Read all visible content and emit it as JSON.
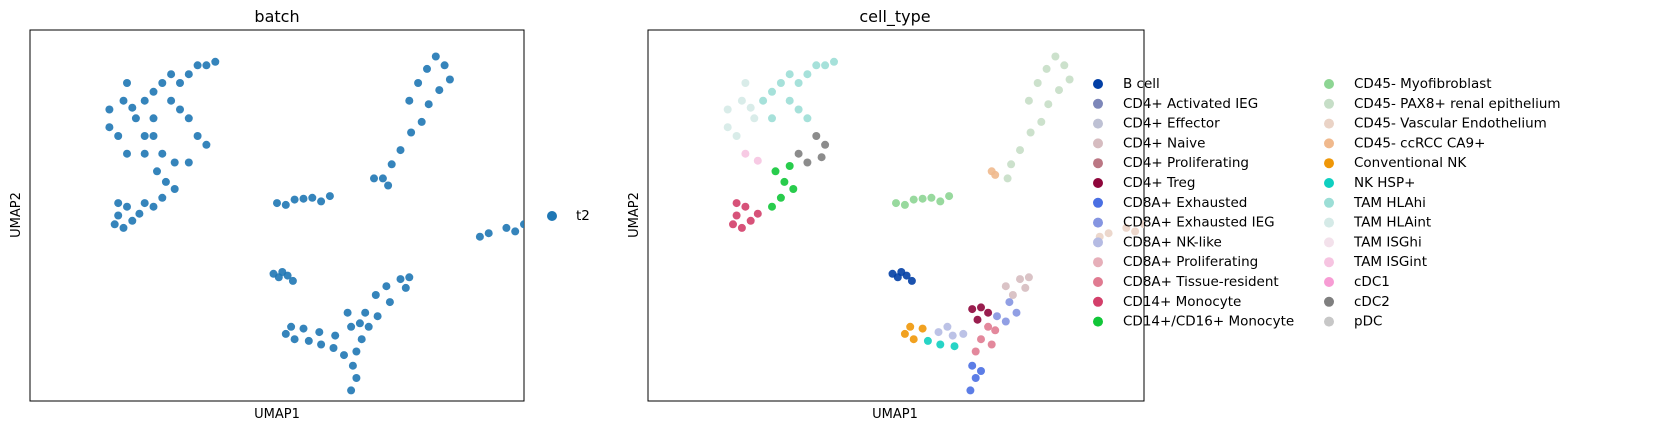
{
  "chart_data": [
    {
      "type": "scatter",
      "title": "batch",
      "xlabel": "UMAP1",
      "ylabel": "UMAP2",
      "xlim": [
        -4,
        24
      ],
      "ylim": [
        -4,
        17
      ],
      "grid": false,
      "ticks": false,
      "legend_position": "right",
      "legend": [
        {
          "name": "t2",
          "color": "#1f77b4"
        }
      ],
      "clusters": [
        {
          "group": "t2",
          "points": [
            [
              3,
              13.5
            ],
            [
              3.5,
              14
            ],
            [
              4,
              14.5
            ],
            [
              4.5,
              14
            ],
            [
              5,
              14.5
            ],
            [
              5.5,
              15
            ],
            [
              6,
              15
            ],
            [
              6.5,
              15.2
            ],
            [
              4,
              13
            ],
            [
              4.5,
              12.5
            ],
            [
              5,
              12
            ],
            [
              5.5,
              11
            ],
            [
              6,
              10.5
            ],
            [
              3,
              12
            ],
            [
              2.5,
              11
            ],
            [
              2.5,
              10
            ],
            [
              3,
              11
            ],
            [
              3.5,
              10
            ],
            [
              4.2,
              9.5
            ],
            [
              3.2,
              9
            ],
            [
              1.5,
              14
            ],
            [
              1.3,
              13
            ],
            [
              0.5,
              12.5
            ],
            [
              0.5,
              11.5
            ],
            [
              1,
              11
            ],
            [
              1.5,
              10
            ],
            [
              2,
              12
            ],
            [
              2.5,
              13
            ],
            [
              1.8,
              12.6
            ],
            [
              5,
              9.5
            ],
            [
              4.2,
              8
            ],
            [
              3.5,
              7.5
            ],
            [
              3,
              7
            ],
            [
              2.5,
              7.2
            ],
            [
              3.7,
              8.4
            ],
            [
              2.2,
              6.6
            ],
            [
              1.5,
              7
            ],
            [
              1,
              6.5
            ],
            [
              0.8,
              6
            ],
            [
              1.3,
              5.8
            ],
            [
              1.8,
              6.2
            ],
            [
              1,
              7.2
            ]
          ]
        },
        {
          "group": "t2",
          "points": [
            [
              17.5,
              13
            ],
            [
              18,
              14
            ],
            [
              18.5,
              14.8
            ],
            [
              19,
              15.5
            ],
            [
              19.5,
              15
            ],
            [
              19.8,
              14.2
            ],
            [
              19.2,
              13.6
            ],
            [
              18.6,
              12.8
            ],
            [
              18.2,
              11.8
            ],
            [
              17.6,
              11.2
            ],
            [
              17,
              10.2
            ],
            [
              16.5,
              9.4
            ],
            [
              16,
              8.6
            ],
            [
              16.3,
              8.2
            ],
            [
              15.5,
              8.6
            ]
          ]
        },
        {
          "group": "t2",
          "points": [
            [
              10,
              7.2
            ],
            [
              11,
              7.4
            ],
            [
              12,
              7.5
            ],
            [
              13,
              7.6
            ],
            [
              12.5,
              7.3
            ],
            [
              10.5,
              7.1
            ],
            [
              11.5,
              7.45
            ]
          ]
        },
        {
          "group": "t2",
          "points": [
            [
              22,
              5.5
            ],
            [
              23,
              5.8
            ],
            [
              24,
              6
            ],
            [
              25,
              6.1
            ],
            [
              26,
              6.3
            ],
            [
              27,
              6.4
            ],
            [
              25.5,
              6
            ],
            [
              23.5,
              5.6
            ],
            [
              21.5,
              5.3
            ]
          ]
        },
        {
          "group": "t2",
          "points": [
            [
              9.8,
              3.2
            ],
            [
              10.3,
              3.3
            ],
            [
              10.6,
              3.1
            ],
            [
              10.9,
              2.8
            ],
            [
              10.1,
              3.0
            ]
          ]
        },
        {
          "group": "t2",
          "points": [
            [
              15,
              1
            ],
            [
              15.6,
              2
            ],
            [
              16.2,
              2.5
            ],
            [
              17,
              2.9
            ],
            [
              17.5,
              3
            ],
            [
              17.3,
              2.4
            ],
            [
              16.4,
              1.6
            ],
            [
              15.7,
              0.8
            ],
            [
              15.2,
              0.2
            ],
            [
              14.8,
              -0.5
            ],
            [
              14.5,
              -1.2
            ],
            [
              14.3,
              -2
            ],
            [
              14.5,
              -2.7
            ],
            [
              14.2,
              -3.4
            ],
            [
              13.8,
              -1.4
            ],
            [
              13.2,
              -1
            ],
            [
              12.5,
              -0.8
            ],
            [
              11.8,
              -0.6
            ],
            [
              11,
              -0.5
            ],
            [
              10.5,
              -0.2
            ],
            [
              10.8,
              0.2
            ],
            [
              11.5,
              0.1
            ],
            [
              12.4,
              -0.1
            ],
            [
              13.3,
              -0.3
            ],
            [
              14.7,
              0.4
            ],
            [
              14,
              1
            ],
            [
              14.2,
              0.2
            ]
          ]
        }
      ]
    },
    {
      "type": "scatter",
      "title": "cell_type",
      "xlabel": "UMAP1",
      "ylabel": "UMAP2",
      "xlim": [
        -4,
        24
      ],
      "ylim": [
        -4,
        17
      ],
      "grid": false,
      "ticks": false,
      "legend_position": "right",
      "legend": [
        {
          "name": "B cell",
          "color": "#023fa5"
        },
        {
          "name": "CD4+ Activated IEG",
          "color": "#7d87b9"
        },
        {
          "name": "CD4+ Effector",
          "color": "#bec1d4"
        },
        {
          "name": "CD4+ Naive",
          "color": "#d6bcc0"
        },
        {
          "name": "CD4+ Proliferating",
          "color": "#bb7784"
        },
        {
          "name": "CD4+ Treg",
          "color": "#8e063b"
        },
        {
          "name": "CD8A+ Exhausted",
          "color": "#4a6fe3"
        },
        {
          "name": "CD8A+ Exhausted IEG",
          "color": "#8595e1"
        },
        {
          "name": "CD8A+ NK-like",
          "color": "#b5bbe3"
        },
        {
          "name": "CD8A+ Proliferating",
          "color": "#e6afb9"
        },
        {
          "name": "CD8A+ Tissue-resident",
          "color": "#e07b91"
        },
        {
          "name": "CD14+ Monocyte",
          "color": "#d33f6a"
        },
        {
          "name": "CD14+/CD16+ Monocyte",
          "color": "#11c638"
        },
        {
          "name": "CD45- Myofibroblast",
          "color": "#8dd593"
        },
        {
          "name": "CD45- PAX8+ renal epithelium",
          "color": "#c6dec7"
        },
        {
          "name": "CD45- Vascular Endothelium",
          "color": "#ead3c6"
        },
        {
          "name": "CD45- ccRCC CA9+",
          "color": "#f0b98d"
        },
        {
          "name": "Conventional NK",
          "color": "#ef9708"
        },
        {
          "name": "NK HSP+",
          "color": "#0fcfc0"
        },
        {
          "name": "TAM HLAhi",
          "color": "#9cded6"
        },
        {
          "name": "TAM HLAint",
          "color": "#d5eae7"
        },
        {
          "name": "TAM ISGhi",
          "color": "#f3e1eb"
        },
        {
          "name": "TAM ISGint",
          "color": "#f6c4e1"
        },
        {
          "name": "cDC1",
          "color": "#f79cd4"
        },
        {
          "name": "cDC2",
          "color": "#7f7f7f"
        },
        {
          "name": "pDC",
          "color": "#c7c7c7"
        }
      ],
      "clusters": [
        {
          "group": "TAM HLAhi",
          "points": [
            [
              3,
              13.5
            ],
            [
              3.5,
              14
            ],
            [
              4,
              14.5
            ],
            [
              4.5,
              14
            ],
            [
              5,
              14.5
            ],
            [
              5.5,
              15
            ],
            [
              6,
              15
            ],
            [
              6.5,
              15.2
            ],
            [
              4,
              13
            ],
            [
              4.5,
              12.5
            ],
            [
              5,
              12
            ],
            [
              3,
              12
            ],
            [
              2.5,
              13
            ]
          ]
        },
        {
          "group": "TAM HLAint",
          "points": [
            [
              1.5,
              14
            ],
            [
              1.3,
              13
            ],
            [
              0.5,
              12.5
            ],
            [
              0.5,
              11.5
            ],
            [
              1,
              11
            ],
            [
              1.8,
              12.6
            ],
            [
              2,
              12
            ]
          ]
        },
        {
          "group": "cDC2",
          "points": [
            [
              5.5,
              11
            ],
            [
              6,
              10.5
            ],
            [
              5,
              9.5
            ],
            [
              4.5,
              10
            ],
            [
              5.8,
              9.8
            ]
          ]
        },
        {
          "group": "TAM ISGint",
          "points": [
            [
              1.5,
              10
            ],
            [
              2.2,
              9.6
            ]
          ]
        },
        {
          "group": "CD14+/CD16+ Monocyte",
          "points": [
            [
              3.2,
              9
            ],
            [
              3.7,
              8.4
            ],
            [
              4.2,
              8
            ],
            [
              3.5,
              7.5
            ],
            [
              3,
              7
            ],
            [
              4,
              9.3
            ]
          ]
        },
        {
          "group": "CD14+ Monocyte",
          "points": [
            [
              2.2,
              6.6
            ],
            [
              1.5,
              7
            ],
            [
              1,
              6.5
            ],
            [
              0.8,
              6
            ],
            [
              1.3,
              5.8
            ],
            [
              1.8,
              6.2
            ],
            [
              1,
              7.2
            ]
          ]
        },
        {
          "group": "CD45- PAX8+ renal epithelium",
          "points": [
            [
              17.5,
              13
            ],
            [
              18,
              14
            ],
            [
              18.5,
              14.8
            ],
            [
              19,
              15.5
            ],
            [
              19.5,
              15
            ],
            [
              19.8,
              14.2
            ],
            [
              19.2,
              13.6
            ],
            [
              18.6,
              12.8
            ],
            [
              18.2,
              11.8
            ],
            [
              17.6,
              11.2
            ],
            [
              17,
              10.2
            ],
            [
              16.5,
              9.4
            ],
            [
              16.3,
              8.6
            ]
          ]
        },
        {
          "group": "CD45- ccRCC CA9+",
          "points": [
            [
              15.4,
              9.0
            ],
            [
              15.6,
              8.8
            ]
          ]
        },
        {
          "group": "CD45- Myofibroblast",
          "points": [
            [
              10,
              7.2
            ],
            [
              11,
              7.4
            ],
            [
              12,
              7.5
            ],
            [
              13,
              7.6
            ],
            [
              12.5,
              7.3
            ],
            [
              10.5,
              7.1
            ],
            [
              11.5,
              7.45
            ]
          ]
        },
        {
          "group": "CD45- Vascular Endothelium",
          "points": [
            [
              22,
              5.5
            ],
            [
              23,
              5.8
            ],
            [
              24,
              6
            ],
            [
              25,
              6.1
            ],
            [
              26,
              6.3
            ],
            [
              27,
              6.4
            ],
            [
              25.5,
              6
            ],
            [
              23.5,
              5.6
            ],
            [
              21.5,
              5.3
            ]
          ]
        },
        {
          "group": "B cell",
          "points": [
            [
              9.8,
              3.2
            ],
            [
              10.3,
              3.3
            ],
            [
              10.6,
              3.1
            ],
            [
              10.9,
              2.8
            ],
            [
              10.1,
              3.0
            ]
          ]
        },
        {
          "group": "CD4+ Treg",
          "points": [
            [
              14.3,
              1.2
            ],
            [
              14.8,
              1.3
            ],
            [
              15.2,
              1.0
            ],
            [
              14.6,
              0.6
            ]
          ]
        },
        {
          "group": "CD4+ Naive",
          "points": [
            [
              16.2,
              2.5
            ],
            [
              17,
              2.9
            ],
            [
              17.5,
              3
            ],
            [
              17.3,
              2.4
            ],
            [
              16.6,
              2.0
            ]
          ]
        },
        {
          "group": "CD8A+ Exhausted IEG",
          "points": [
            [
              16.4,
              1.6
            ],
            [
              16.8,
              1.0
            ],
            [
              16.2,
              0.5
            ],
            [
              15.7,
              0.8
            ]
          ]
        },
        {
          "group": "CD8A+ Tissue-resident",
          "points": [
            [
              15.2,
              0.2
            ],
            [
              14.8,
              -0.5
            ],
            [
              15.4,
              -0.8
            ],
            [
              14.5,
              -1.2
            ],
            [
              15.6,
              0.0
            ]
          ]
        },
        {
          "group": "CD8A+ Exhausted",
          "points": [
            [
              14.3,
              -2
            ],
            [
              14.5,
              -2.7
            ],
            [
              14.2,
              -3.4
            ],
            [
              14.8,
              -2.3
            ]
          ]
        },
        {
          "group": "CD8A+ NK-like",
          "points": [
            [
              13.8,
              -0.2
            ],
            [
              13.2,
              -0.3
            ],
            [
              12.4,
              -0.1
            ],
            [
              12.9,
              0.2
            ]
          ]
        },
        {
          "group": "NK HSP+",
          "points": [
            [
              12.5,
              -0.8
            ],
            [
              11.8,
              -0.6
            ],
            [
              13.3,
              -0.9
            ]
          ]
        },
        {
          "group": "Conventional NK",
          "points": [
            [
              11,
              -0.5
            ],
            [
              10.5,
              -0.2
            ],
            [
              10.8,
              0.2
            ],
            [
              11.5,
              0.1
            ]
          ]
        }
      ]
    }
  ]
}
